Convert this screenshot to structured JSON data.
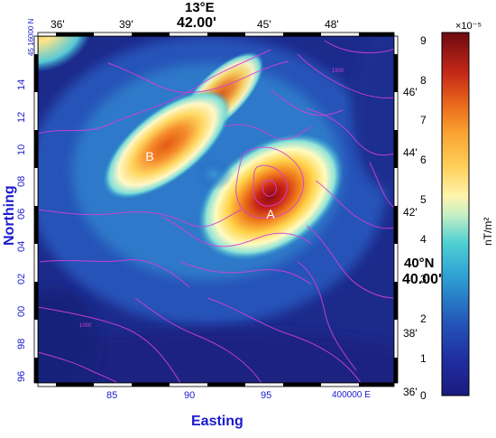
{
  "map": {
    "top_lon_label": "13°E",
    "top_lon_minutes": "42.00'",
    "top_ticks": [
      "36'",
      "39'",
      "42'",
      "45'",
      "48'"
    ],
    "right_lat_label": "40°N",
    "right_lat_minutes": "40.00'",
    "right_ticks": [
      "46'",
      "44'",
      "42'",
      "38'",
      "36'"
    ],
    "left_ticks": [
      "14",
      "12",
      "10",
      "08",
      "06",
      "04",
      "02",
      "00",
      "98",
      "96"
    ],
    "left_top_tick": "45 16000 N",
    "bottom_ticks": [
      "85",
      "90",
      "95",
      "400000 E"
    ],
    "x_axis_label": "Easting",
    "y_axis_label": "Northing",
    "marker_a": "A",
    "marker_b": "B",
    "contour_labels": [
      "1500",
      "1000"
    ]
  },
  "colorbar": {
    "exponent": "×10⁻⁵",
    "ticks": [
      "9",
      "8",
      "7",
      "6",
      "5",
      "4",
      "3",
      "2",
      "1",
      "0"
    ],
    "unit_label": "nT/m²",
    "max": 9.2,
    "min": 0
  }
}
